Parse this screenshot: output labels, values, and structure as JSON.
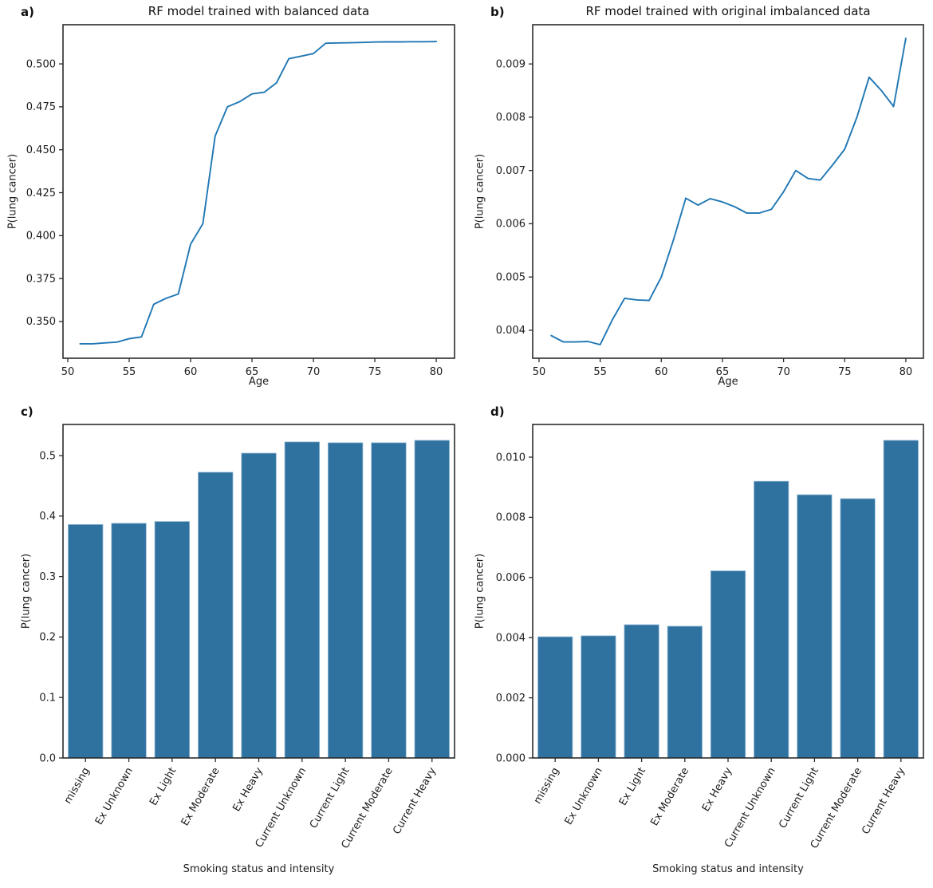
{
  "figure": {
    "background": "#ffffff",
    "spine_color": "#2b2b2b",
    "tick_text_color": "#1c1c1c"
  },
  "chart_data": [
    {
      "id": "a",
      "panel_label": "a)",
      "type": "line",
      "title": "RF model trained with balanced data",
      "xlabel": "Age",
      "ylabel": "P(lung cancer)",
      "line_color": "#1f77b4",
      "x": [
        51,
        52,
        53,
        54,
        55,
        56,
        57,
        58,
        59,
        60,
        61,
        62,
        63,
        64,
        65,
        66,
        67,
        68,
        69,
        70,
        71,
        72,
        73,
        74,
        75,
        76,
        77,
        78,
        79,
        80
      ],
      "y": [
        0.337,
        0.337,
        0.3375,
        0.338,
        0.34,
        0.341,
        0.36,
        0.3635,
        0.366,
        0.395,
        0.407,
        0.458,
        0.475,
        0.478,
        0.4825,
        0.4835,
        0.489,
        0.503,
        0.5045,
        0.506,
        0.512,
        0.5122,
        0.5123,
        0.5125,
        0.5127,
        0.5128,
        0.5128,
        0.5129,
        0.5129,
        0.513
      ],
      "xlim": [
        49.61,
        81.49
      ],
      "ylim": [
        0.3286,
        0.5228
      ],
      "xtick_values": [
        50,
        55,
        60,
        65,
        70,
        75,
        80
      ],
      "xtick_labels": [
        "50",
        "55",
        "60",
        "65",
        "70",
        "75",
        "80"
      ],
      "ytick_values": [
        0.35,
        0.375,
        0.4,
        0.425,
        0.45,
        0.475,
        0.5
      ],
      "ytick_labels": [
        "0.350",
        "0.375",
        "0.400",
        "0.425",
        "0.450",
        "0.475",
        "0.500"
      ],
      "grid": false,
      "legend": null
    },
    {
      "id": "b",
      "panel_label": "b)",
      "type": "line",
      "title": "RF model trained with original imbalanced data",
      "xlabel": "Age",
      "ylabel": "P(lung cancer)",
      "line_color": "#1f77b4",
      "x": [
        51,
        52,
        53,
        54,
        55,
        56,
        57,
        58,
        59,
        60,
        61,
        62,
        63,
        64,
        65,
        66,
        67,
        68,
        69,
        70,
        71,
        72,
        73,
        74,
        75,
        76,
        77,
        78,
        79,
        80
      ],
      "y": [
        0.0039,
        0.00378,
        0.00378,
        0.00379,
        0.00373,
        0.0042,
        0.0046,
        0.00457,
        0.00456,
        0.005,
        0.0057,
        0.00648,
        0.00635,
        0.00647,
        0.00641,
        0.00632,
        0.0062,
        0.0062,
        0.00627,
        0.0066,
        0.007,
        0.00685,
        0.00682,
        0.0071,
        0.0074,
        0.008,
        0.00875,
        0.0085,
        0.0082,
        0.00948
      ],
      "xlim": [
        49.48,
        81.44
      ],
      "ylim": [
        0.003475,
        0.009736
      ],
      "xtick_values": [
        50,
        55,
        60,
        65,
        70,
        75,
        80
      ],
      "xtick_labels": [
        "50",
        "55",
        "60",
        "65",
        "70",
        "75",
        "80"
      ],
      "ytick_values": [
        0.004,
        0.005,
        0.006,
        0.007,
        0.008,
        0.009
      ],
      "ytick_labels": [
        "0.004",
        "0.005",
        "0.006",
        "0.007",
        "0.008",
        "0.009"
      ],
      "grid": false,
      "legend": null
    },
    {
      "id": "c",
      "panel_label": "c)",
      "type": "bar",
      "title": "",
      "xlabel": "Smoking status and intensity",
      "ylabel": "P(lung cancer)",
      "bar_color": "#2f719f",
      "bar_edge_color": "#93b9d6",
      "categories": [
        "missing",
        "Ex Unknown",
        "Ex Light",
        "Ex Moderate",
        "Ex Heavy",
        "Current Unknown",
        "Current Light",
        "Current Moderate",
        "Current Heavy"
      ],
      "values": [
        0.386,
        0.388,
        0.391,
        0.4725,
        0.504,
        0.5226,
        0.5213,
        0.5213,
        0.5252
      ],
      "ylim": [
        0,
        0.5515
      ],
      "ytick_values": [
        0.0,
        0.1,
        0.2,
        0.3,
        0.4,
        0.5
      ],
      "ytick_labels": [
        "0.0",
        "0.1",
        "0.2",
        "0.3",
        "0.4",
        "0.5"
      ],
      "label_rotation_deg": 60,
      "grid": false,
      "legend": null
    },
    {
      "id": "d",
      "panel_label": "d)",
      "type": "bar",
      "title": "",
      "xlabel": "Smoking status and intensity",
      "ylabel": "P(lung cancer)",
      "bar_color": "#2f719f",
      "bar_edge_color": "#93b9d6",
      "categories": [
        "missing",
        "Ex Unknown",
        "Ex Light",
        "Ex Moderate",
        "Ex Heavy",
        "Current Unknown",
        "Current Light",
        "Current Moderate",
        "Current Heavy"
      ],
      "values": [
        0.00403,
        0.00406,
        0.00443,
        0.00438,
        0.00622,
        0.0092,
        0.00875,
        0.00862,
        0.01056
      ],
      "ylim": [
        0,
        0.011088
      ],
      "ytick_values": [
        0.0,
        0.002,
        0.004,
        0.006,
        0.008,
        0.01
      ],
      "ytick_labels": [
        "0.000",
        "0.002",
        "0.004",
        "0.006",
        "0.008",
        "0.010"
      ],
      "label_rotation_deg": 60,
      "grid": false,
      "legend": null
    }
  ]
}
